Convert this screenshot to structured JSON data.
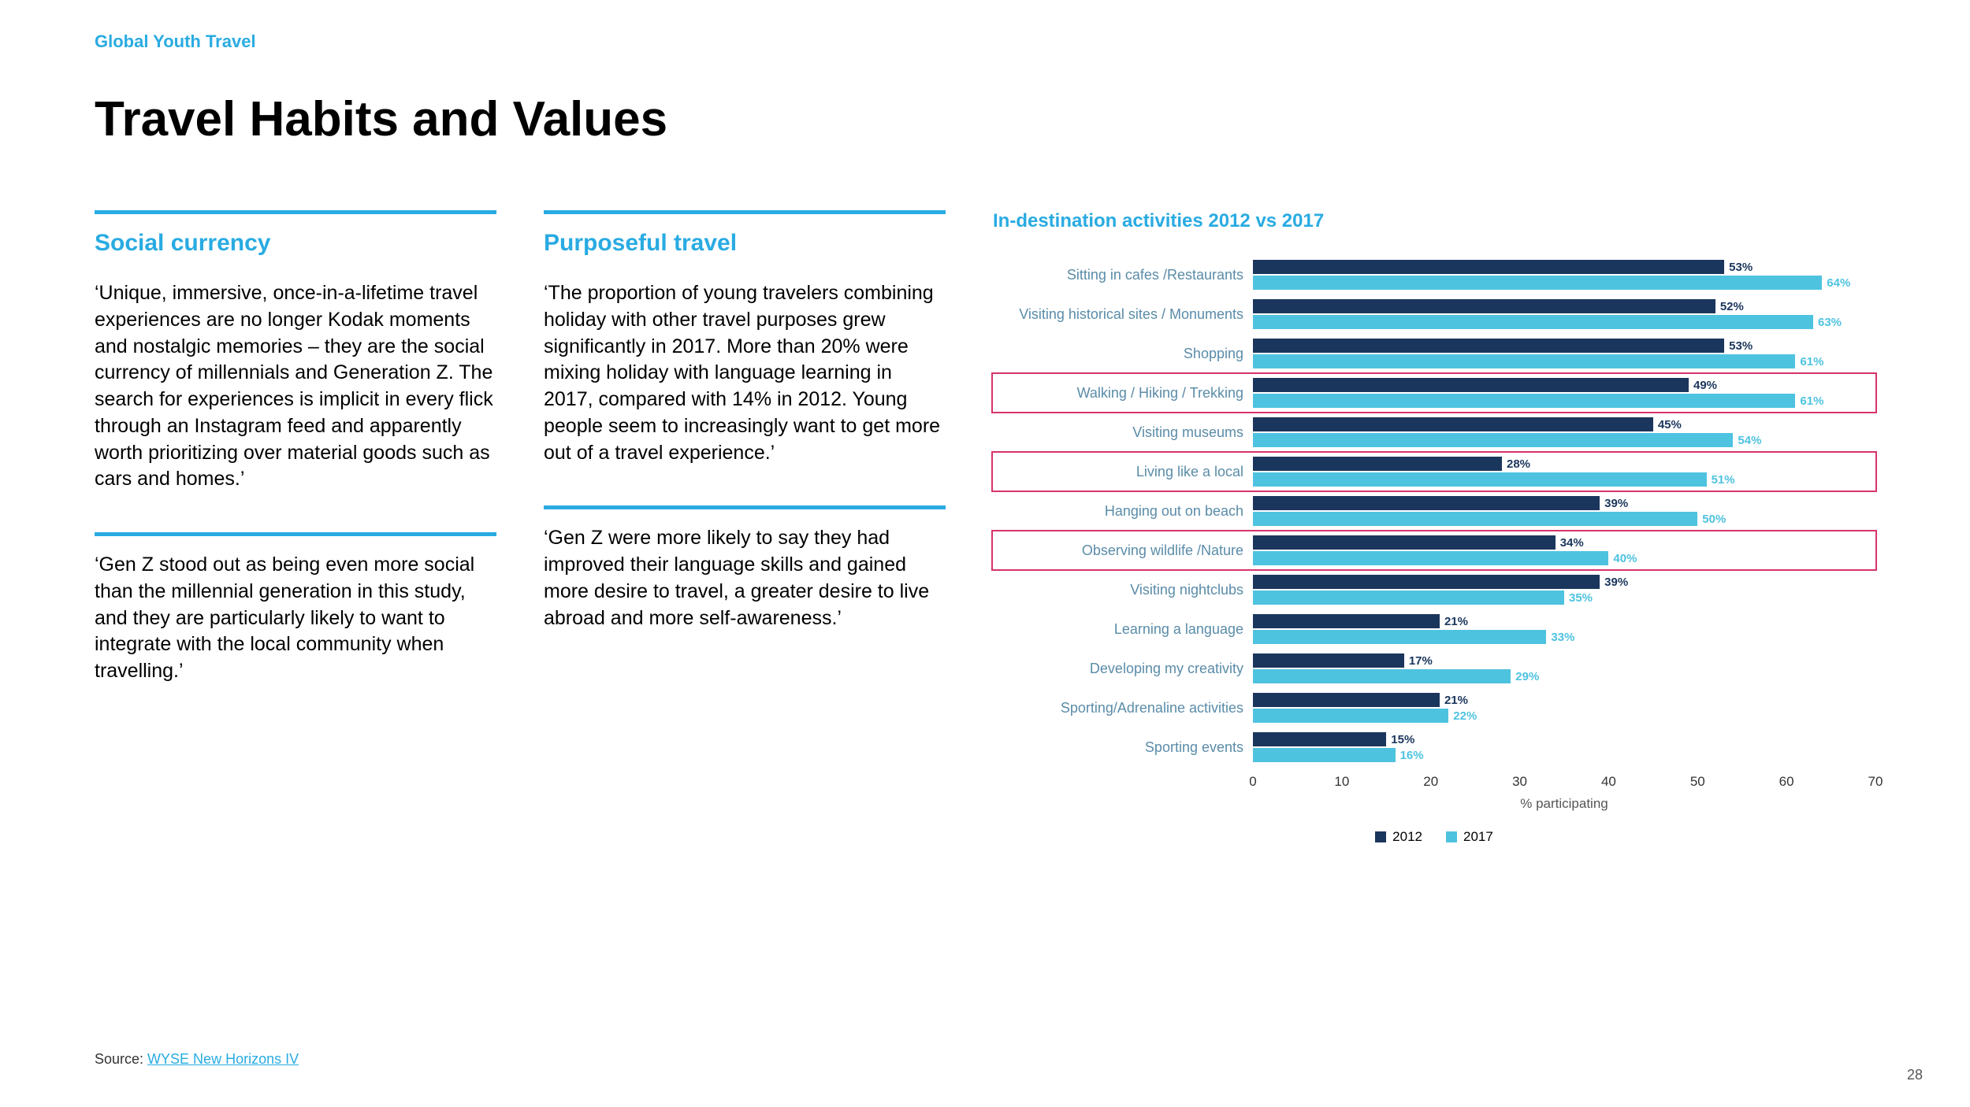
{
  "header_label": "Global Youth Travel",
  "main_title": "Travel Habits and Values",
  "columns": [
    {
      "heading": "Social currency",
      "para1": "‘Unique, immersive, once-in-a-lifetime travel experiences are no longer Kodak moments and nostalgic memories – they are the social currency of millennials and Generation Z. The search for experiences is implicit in every flick through an Instagram feed and apparently worth prioritizing over material goods such as cars and homes.’",
      "para2": "‘Gen Z stood out as being even more social than the millennial generation in this study, and they are particularly likely to want to integrate with the local community when travelling.’"
    },
    {
      "heading": "Purposeful travel",
      "para1": "‘The proportion of young travelers combining holiday with other travel purposes grew significantly in 2017. More than 20% were mixing holiday with language learning in 2017, compared with 14% in 2012. Young people seem to increasingly want to get more out of a travel experience.’",
      "para2": "‘Gen Z were more likely to say they had improved their language skills and gained more desire to travel, a greater desire to live abroad and more self-awareness.’"
    }
  ],
  "chart": {
    "title": "In-destination activities 2012 vs 2017",
    "xlim": 70,
    "ticks": [
      0,
      10,
      20,
      30,
      40,
      50,
      60,
      70
    ],
    "axis_label": "% participating",
    "color_2012": "#1b365d",
    "color_2017": "#4ec3e0",
    "highlight_color": "#d6336c",
    "legend_2012": "2012",
    "legend_2017": "2017",
    "rows": [
      {
        "label": "Sitting in cafes /Restaurants",
        "v2012": 53,
        "v2017": 64,
        "highlighted": false
      },
      {
        "label": "Visiting historical sites / Monuments",
        "v2012": 52,
        "v2017": 63,
        "highlighted": false
      },
      {
        "label": "Shopping",
        "v2012": 53,
        "v2017": 61,
        "highlighted": false
      },
      {
        "label": "Walking / Hiking / Trekking",
        "v2012": 49,
        "v2017": 61,
        "highlighted": true
      },
      {
        "label": "Visiting museums",
        "v2012": 45,
        "v2017": 54,
        "highlighted": false
      },
      {
        "label": "Living like a local",
        "v2012": 28,
        "v2017": 51,
        "highlighted": true
      },
      {
        "label": "Hanging out on beach",
        "v2012": 39,
        "v2017": 50,
        "highlighted": false
      },
      {
        "label": "Observing wildlife /Nature",
        "v2012": 34,
        "v2017": 40,
        "highlighted": true
      },
      {
        "label": "Visiting nightclubs",
        "v2012": 39,
        "v2017": 35,
        "highlighted": false
      },
      {
        "label": "Learning a language",
        "v2012": 21,
        "v2017": 33,
        "highlighted": false
      },
      {
        "label": "Developing my creativity",
        "v2012": 17,
        "v2017": 29,
        "highlighted": false
      },
      {
        "label": "Sporting/Adrenaline activities",
        "v2012": 21,
        "v2017": 22,
        "highlighted": false
      },
      {
        "label": "Sporting events",
        "v2012": 15,
        "v2017": 16,
        "highlighted": false
      }
    ]
  },
  "source_prefix": "Source: ",
  "source_link": "WYSE New Horizons IV",
  "page_number": "28"
}
